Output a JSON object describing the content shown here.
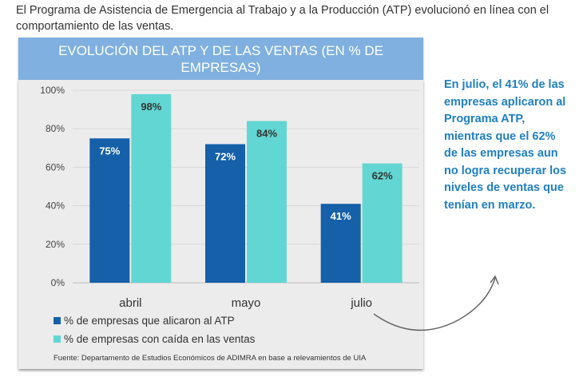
{
  "intro": "El Programa de Asistencia de Emergencia al Trabajo y a la Producción (ATP) evolucionó en línea con el comportamiento de las ventas.",
  "note": "En julio, el 41% de las empresas aplicaron al Programa ATP, mientras que el 62% de las empresas aun no logra recuperar los niveles de ventas que tenían en marzo.",
  "chart_data": {
    "type": "bar",
    "title": "EVOLUCIÓN DEL ATP Y DE LAS VENTAS (EN % DE EMPRESAS)",
    "categories": [
      "abril",
      "mayo",
      "julio"
    ],
    "series": [
      {
        "name": "% de empresas que alicaron al ATP",
        "values": [
          75,
          72,
          41
        ],
        "labels": [
          "75%",
          "72%",
          "41%"
        ],
        "color": "#1560a8"
      },
      {
        "name": "% de empresas con caída en las ventas",
        "values": [
          98,
          84,
          62
        ],
        "labels": [
          "98%",
          "84%",
          "62%"
        ],
        "color": "#62d6d2"
      }
    ],
    "yticks": [
      "0%",
      "20%",
      "40%",
      "60%",
      "80%",
      "100%"
    ],
    "ylim": [
      0,
      100
    ],
    "legend": "bottom-left",
    "source": "Fuente: Departamento de Estudios Económicos de ADIMRA en base a relevamientos de UIA"
  }
}
